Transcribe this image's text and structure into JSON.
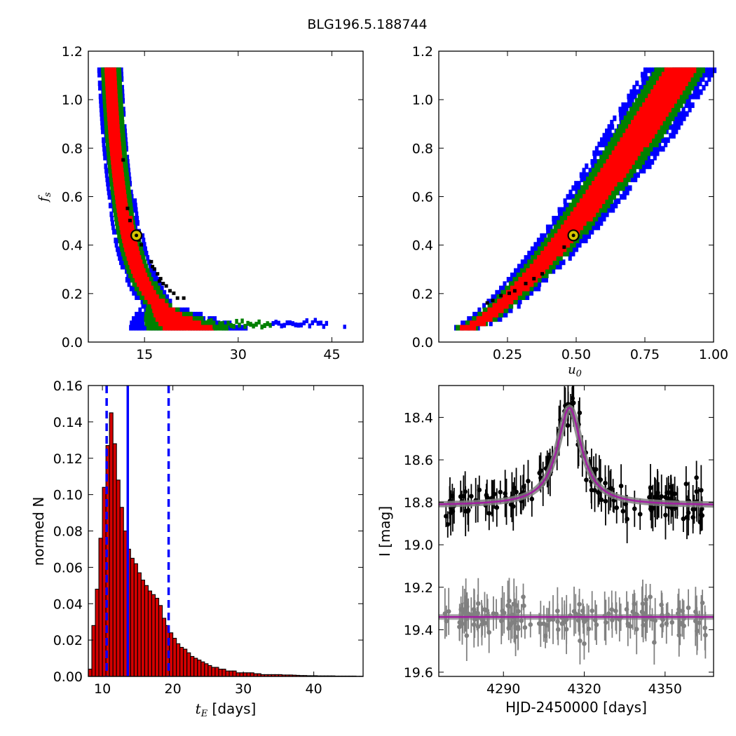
{
  "figure_title": "BLG196.5.188744",
  "colors": {
    "sigma1": "#ff0000",
    "sigma2": "#008000",
    "sigma3": "#0000ff",
    "samples": "#000000",
    "best_fit_marker_face": "#d4c400",
    "hist_bar": "#d40000",
    "median_line": "#0000ff",
    "model_line": "#a020a0",
    "model_band": "#808080",
    "residual_points": "#808080",
    "data_points": "#000000"
  },
  "chart_data": [
    {
      "type": "heatmap",
      "panel": "tE-fs",
      "title": "",
      "xlabel": "",
      "ylabel": "f_s",
      "xlim": [
        6,
        50
      ],
      "ylim": [
        0.0,
        1.2
      ],
      "xticks": [
        "15",
        "30",
        "45"
      ],
      "yticks": [
        "0.0",
        "0.2",
        "0.4",
        "0.6",
        "0.8",
        "1.0",
        "1.2"
      ],
      "contour_levels": [
        "1-sigma",
        "2-sigma",
        "3-sigma"
      ],
      "best_fit": {
        "x": 13.7,
        "y": 0.44
      }
    },
    {
      "type": "heatmap",
      "panel": "u0-fs",
      "title": "",
      "xlabel": "u_0",
      "ylabel": "",
      "xlim": [
        0.0,
        1.0
      ],
      "ylim": [
        0.0,
        1.2
      ],
      "xticks": [
        "0.25",
        "0.50",
        "0.75",
        "1.00"
      ],
      "yticks": [
        "0.0",
        "0.2",
        "0.4",
        "0.6",
        "0.8",
        "1.0",
        "1.2"
      ],
      "contour_levels": [
        "1-sigma",
        "2-sigma",
        "3-sigma"
      ],
      "best_fit": {
        "x": 0.49,
        "y": 0.44
      }
    },
    {
      "type": "bar",
      "panel": "tE-histogram",
      "title": "",
      "xlabel": "t_E  [days]",
      "ylabel": "normed N",
      "xlim": [
        8,
        47
      ],
      "ylim": [
        0.0,
        0.16
      ],
      "xticks": [
        "10",
        "20",
        "30",
        "40"
      ],
      "yticks": [
        "0.00",
        "0.02",
        "0.04",
        "0.06",
        "0.08",
        "0.10",
        "0.12",
        "0.14",
        "0.16"
      ],
      "bin_start": 8.0,
      "bin_width": 0.5,
      "values": [
        0.004,
        0.028,
        0.048,
        0.076,
        0.104,
        0.127,
        0.145,
        0.128,
        0.108,
        0.093,
        0.08,
        0.07,
        0.065,
        0.062,
        0.057,
        0.053,
        0.05,
        0.047,
        0.045,
        0.043,
        0.039,
        0.032,
        0.028,
        0.024,
        0.021,
        0.018,
        0.016,
        0.015,
        0.013,
        0.011,
        0.01,
        0.009,
        0.008,
        0.007,
        0.006,
        0.005,
        0.005,
        0.004,
        0.004,
        0.003,
        0.003,
        0.003,
        0.002,
        0.002,
        0.002,
        0.002,
        0.002,
        0.0015,
        0.0015,
        0.001,
        0.001,
        0.001,
        0.001,
        0.001,
        0.001,
        0.0008,
        0.0008,
        0.0008,
        0.0007,
        0.0006,
        0.0005,
        0.0005,
        0.0004,
        0.0004,
        0.0004,
        0.0003,
        0.0003,
        0.0003,
        0.0003,
        0.0003,
        0.0002,
        0.0002,
        0.0002,
        0.0002,
        0.0002,
        0.0002,
        0.0001,
        0.0001
      ],
      "median": 13.6,
      "interval": [
        10.6,
        19.4
      ]
    },
    {
      "type": "scatter",
      "panel": "light-curve",
      "title": "",
      "xlabel": "HJD-2450000 [days]",
      "ylabel": "I [mag]",
      "xlim": [
        4266,
        4368
      ],
      "ylim": [
        19.62,
        18.25
      ],
      "y_inverted": true,
      "xticks": [
        "4290",
        "4320",
        "4350"
      ],
      "yticks": [
        "18.4",
        "18.6",
        "18.8",
        "19.0",
        "19.2",
        "19.4",
        "19.6"
      ],
      "model": {
        "t0": 4314.5,
        "baseline": 18.815,
        "peak": 18.355,
        "width": 5.5
      },
      "residual_baseline": 19.34
    }
  ]
}
